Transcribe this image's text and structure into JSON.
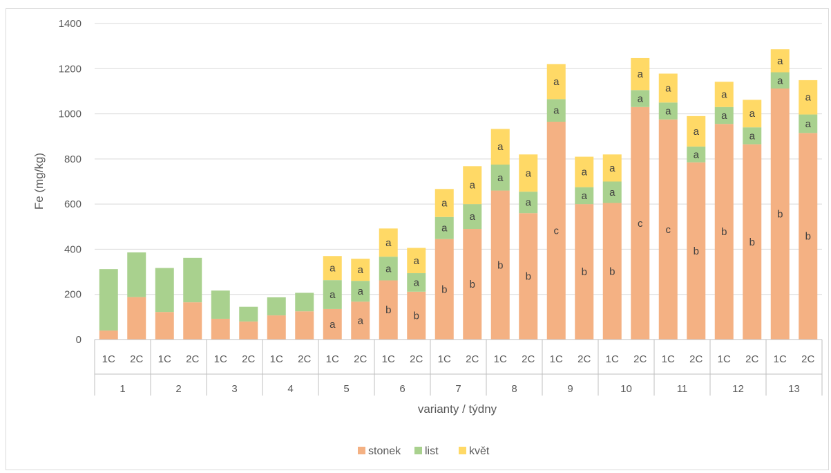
{
  "chart_data": {
    "type": "bar",
    "stacked": true,
    "ylabel": "Fe (mg/kg)",
    "xlabel": "varianty / týdny",
    "ylim": [
      0,
      1400
    ],
    "yticks": [
      0,
      200,
      400,
      600,
      800,
      1000,
      1200,
      1400
    ],
    "grid": true,
    "legend_position": "bottom",
    "groups": [
      "1",
      "2",
      "3",
      "4",
      "5",
      "6",
      "7",
      "8",
      "9",
      "10",
      "11",
      "12",
      "13"
    ],
    "subcategories": [
      "1C",
      "2C"
    ],
    "series": [
      {
        "name": "stonek",
        "color": "#F4B183",
        "values": [
          [
            40,
            188
          ],
          [
            122,
            165
          ],
          [
            92,
            80
          ],
          [
            107,
            125
          ],
          [
            135,
            168
          ],
          [
            262,
            212
          ],
          [
            445,
            490
          ],
          [
            660,
            560
          ],
          [
            965,
            600
          ],
          [
            605,
            1030
          ],
          [
            975,
            785
          ],
          [
            955,
            865
          ],
          [
            1112,
            915
          ]
        ],
        "labels": [
          [
            "",
            ""
          ],
          [
            "",
            ""
          ],
          [
            "",
            ""
          ],
          [
            "",
            ""
          ],
          [
            "a",
            "a"
          ],
          [
            "b",
            "b"
          ],
          [
            "b",
            "b"
          ],
          [
            "b",
            "b"
          ],
          [
            "c",
            "b"
          ],
          [
            "b",
            "c"
          ],
          [
            "c",
            "b"
          ],
          [
            "b",
            "b"
          ],
          [
            "b",
            "b"
          ]
        ]
      },
      {
        "name": "list",
        "color": "#A9D18E",
        "values": [
          [
            272,
            198
          ],
          [
            195,
            197
          ],
          [
            125,
            65
          ],
          [
            80,
            82
          ],
          [
            128,
            92
          ],
          [
            105,
            82
          ],
          [
            98,
            110
          ],
          [
            115,
            95
          ],
          [
            100,
            75
          ],
          [
            95,
            75
          ],
          [
            75,
            70
          ],
          [
            75,
            75
          ],
          [
            72,
            82
          ]
        ],
        "labels": [
          [
            "",
            ""
          ],
          [
            "",
            ""
          ],
          [
            "",
            ""
          ],
          [
            "",
            ""
          ],
          [
            "a",
            "a"
          ],
          [
            "a",
            "a"
          ],
          [
            "a",
            "a"
          ],
          [
            "a",
            "a"
          ],
          [
            "a",
            "a"
          ],
          [
            "a",
            "a"
          ],
          [
            "a",
            "a"
          ],
          [
            "a",
            "a"
          ],
          [
            "a",
            "a"
          ]
        ]
      },
      {
        "name": "květ",
        "color": "#FFD966",
        "values": [
          [
            0,
            0
          ],
          [
            0,
            0
          ],
          [
            0,
            0
          ],
          [
            0,
            0
          ],
          [
            107,
            98
          ],
          [
            125,
            112
          ],
          [
            124,
            168
          ],
          [
            158,
            165
          ],
          [
            155,
            135
          ],
          [
            120,
            142
          ],
          [
            128,
            135
          ],
          [
            112,
            122
          ],
          [
            102,
            152
          ]
        ],
        "labels": [
          [
            "",
            ""
          ],
          [
            "",
            ""
          ],
          [
            "",
            ""
          ],
          [
            "",
            ""
          ],
          [
            "a",
            "a"
          ],
          [
            "a",
            "a"
          ],
          [
            "a",
            "a"
          ],
          [
            "a",
            "a"
          ],
          [
            "a",
            "a"
          ],
          [
            "a",
            "a"
          ],
          [
            "a",
            "a"
          ],
          [
            "a",
            "a"
          ],
          [
            "a",
            "a"
          ]
        ]
      }
    ]
  }
}
